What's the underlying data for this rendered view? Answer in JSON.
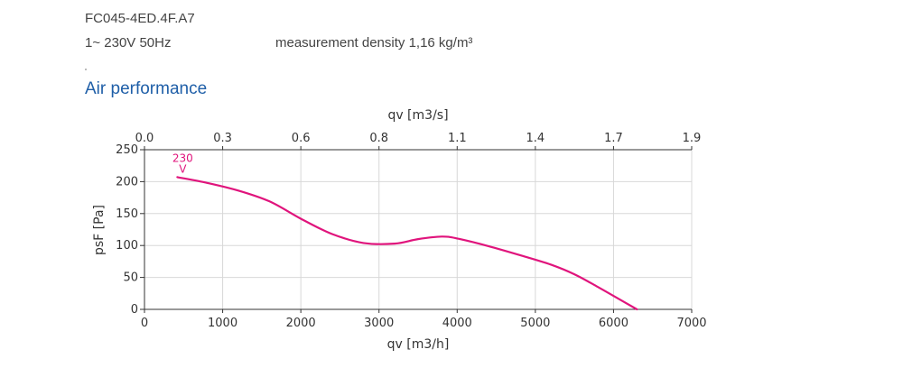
{
  "header": {
    "model": "FC045-4ED.4F.A7",
    "supply": "1~ 230V 50Hz",
    "density": "measurement density 1,16 kg/m³"
  },
  "section_title": "Air performance",
  "colors": {
    "curve": "#e0147c",
    "grid": "#d8d8d8",
    "axis": "#333333",
    "title": "#1f5fa8"
  },
  "chart_data": {
    "type": "line",
    "title": "",
    "xlabel": "qv [m3/h]",
    "x2label": "qv [m3/s]",
    "ylabel": "psF [Pa]",
    "xlim": [
      0,
      7000
    ],
    "ylim": [
      0,
      250
    ],
    "x2lim": [
      0,
      1.944
    ],
    "xticks": [
      "0",
      "1000",
      "2000",
      "3000",
      "4000",
      "5000",
      "6000",
      "7000"
    ],
    "x2ticks": [
      "0.0",
      "0.3",
      "0.6",
      "0.8",
      "1.1",
      "1.4",
      "1.7",
      "1.9"
    ],
    "yticks": [
      "0",
      "50",
      "100",
      "150",
      "200",
      "250"
    ],
    "grid": true,
    "series": [
      {
        "name": "230 V",
        "label_line1": "230",
        "label_line2": "V",
        "x": [
          420,
          800,
          1200,
          1600,
          2000,
          2400,
          2800,
          3200,
          3500,
          3800,
          4000,
          4400,
          4800,
          5200,
          5500,
          5800,
          6100,
          6300
        ],
        "y": [
          207,
          198,
          186,
          169,
          142,
          118,
          104,
          103,
          110,
          114,
          111,
          99,
          85,
          70,
          55,
          35,
          14,
          0
        ]
      }
    ]
  }
}
